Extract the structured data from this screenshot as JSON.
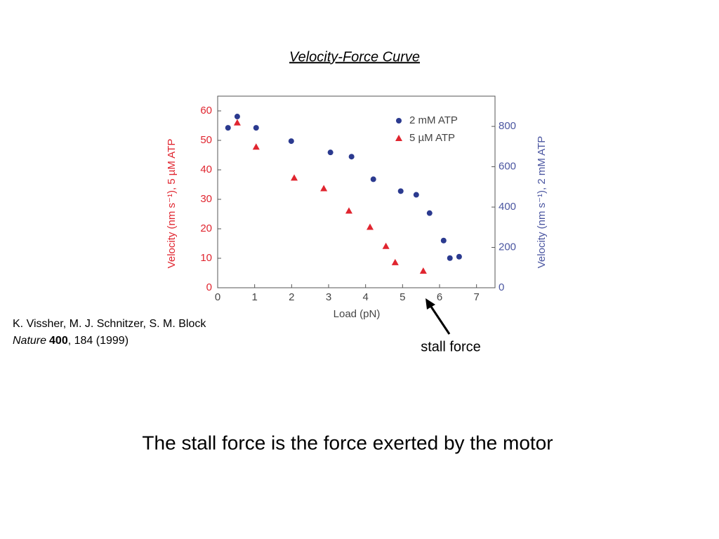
{
  "chart_data": {
    "type": "scatter",
    "title": "Velocity-Force Curve",
    "x_label": "Load (pN)",
    "y_label": "Velocity (nm s⁻¹), 5 µM ATP",
    "y2_label": "Velocity (nm s⁻¹), 2 mM ATP",
    "xlim": [
      0,
      7.5
    ],
    "xticks": [
      0,
      1,
      2,
      3,
      4,
      5,
      6,
      7
    ],
    "ylim": [
      0,
      65
    ],
    "yticks": [
      0,
      10,
      20,
      30,
      40,
      50,
      60
    ],
    "y2lim": [
      0,
      950
    ],
    "y2ticks": [
      0,
      200,
      400,
      600,
      800
    ],
    "legend": "top-right",
    "series": [
      {
        "name": "2 mM ATP",
        "color": "#2b3a8f",
        "axis": "y2",
        "marker": "circle",
        "x": [
          0.28,
          0.53,
          1.04,
          1.99,
          3.05,
          3.62,
          4.21,
          4.95,
          5.37,
          5.73,
          6.11,
          6.28,
          6.53
        ],
        "values": [
          793,
          849,
          793,
          727,
          671,
          650,
          538,
          479,
          461,
          370,
          234,
          147,
          154
        ]
      },
      {
        "name": "5 µM ATP",
        "color": "#e0252f",
        "axis": "y",
        "marker": "triangle",
        "x": [
          0.53,
          1.04,
          2.07,
          2.87,
          3.55,
          4.12,
          4.55,
          4.8,
          5.56
        ],
        "values": [
          56,
          47.8,
          37.3,
          33.7,
          26.1,
          20.6,
          14.1,
          8.6,
          5.7
        ]
      }
    ]
  },
  "citation": {
    "authors": "K. Vissher, M. J. Schnitzer, S. M. Block",
    "journal": "Nature",
    "volume": "400",
    "rest": ", 184 (1999)"
  },
  "annotation": "stall force",
  "caption": "The stall force is the force exerted by the motor"
}
